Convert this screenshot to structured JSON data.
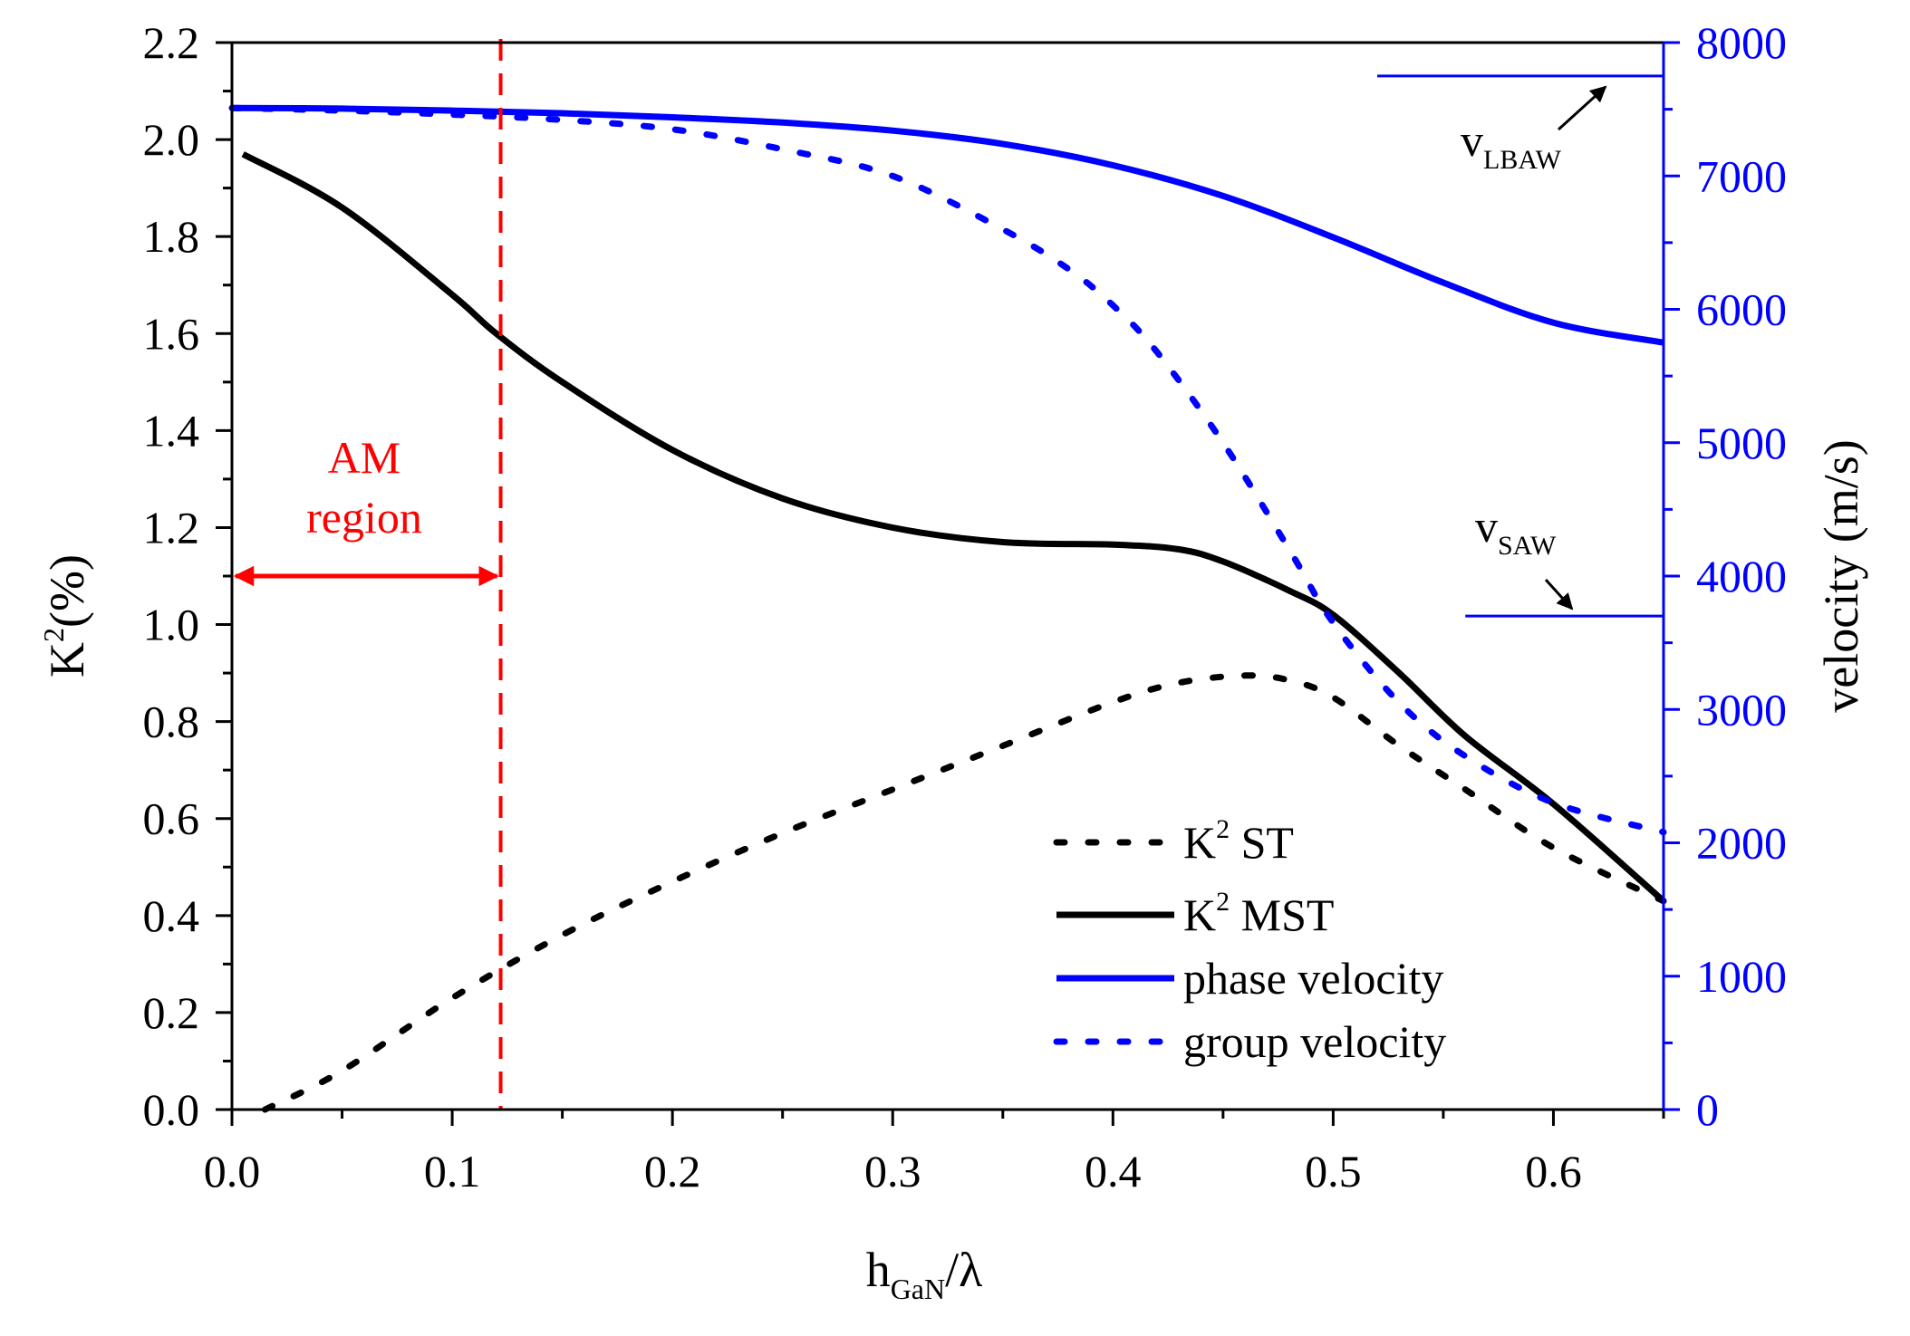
{
  "chart_data": {
    "type": "line",
    "xlabel": {
      "main": "h",
      "sub": "GaN",
      "tail": "/λ"
    },
    "ylabel_left": {
      "main": "K",
      "sup": "2",
      "tail": "(%)"
    },
    "ylabel_right": "velocity (m/s)",
    "xlim": [
      0,
      0.65
    ],
    "ylim_left": [
      0,
      2.2
    ],
    "ylim_right": [
      0,
      8000
    ],
    "x_ticks": [
      "0.0",
      "0.1",
      "0.2",
      "0.3",
      "0.4",
      "0.5",
      "0.6"
    ],
    "y_left_ticks": [
      "0.0",
      "0.2",
      "0.4",
      "0.6",
      "0.8",
      "1.0",
      "1.2",
      "1.4",
      "1.6",
      "1.8",
      "2.0",
      "2.2"
    ],
    "y_right_ticks": [
      "0",
      "1000",
      "2000",
      "3000",
      "4000",
      "5000",
      "6000",
      "7000",
      "8000"
    ],
    "colors": {
      "k2": "#000000",
      "velocity": "#0000ff",
      "annotation": "#ff0000"
    },
    "series": [
      {
        "name": "K² ST",
        "axis": "left",
        "style": "dotted",
        "color": "#000000",
        "x": [
          0.015,
          0.05,
          0.1,
          0.15,
          0.2,
          0.25,
          0.3,
          0.35,
          0.4,
          0.43,
          0.46,
          0.48,
          0.5,
          0.53,
          0.56,
          0.6,
          0.65
        ],
        "y": [
          0.0,
          0.08,
          0.23,
          0.36,
          0.47,
          0.57,
          0.66,
          0.75,
          0.84,
          0.88,
          0.895,
          0.885,
          0.85,
          0.75,
          0.66,
          0.54,
          0.43
        ]
      },
      {
        "name": "K² MST",
        "axis": "left",
        "style": "solid",
        "color": "#000000",
        "x": [
          0.005,
          0.05,
          0.1,
          0.12,
          0.15,
          0.2,
          0.25,
          0.3,
          0.35,
          0.4,
          0.43,
          0.45,
          0.48,
          0.5,
          0.53,
          0.56,
          0.6,
          0.65
        ],
        "y": [
          1.97,
          1.86,
          1.68,
          1.6,
          1.5,
          1.36,
          1.26,
          1.2,
          1.17,
          1.165,
          1.155,
          1.13,
          1.07,
          1.02,
          0.9,
          0.77,
          0.63,
          0.43
        ]
      },
      {
        "name": "phase velocity",
        "axis": "right",
        "style": "solid",
        "color": "#0000ff",
        "x": [
          0.0,
          0.05,
          0.1,
          0.15,
          0.2,
          0.25,
          0.3,
          0.35,
          0.4,
          0.45,
          0.5,
          0.55,
          0.6,
          0.65
        ],
        "y": [
          7510,
          7505,
          7490,
          7470,
          7440,
          7400,
          7340,
          7240,
          7080,
          6850,
          6540,
          6200,
          5900,
          5750
        ]
      },
      {
        "name": "group velocity",
        "axis": "right",
        "style": "dotted",
        "color": "#0000ff",
        "x": [
          0.0,
          0.05,
          0.1,
          0.15,
          0.2,
          0.25,
          0.3,
          0.35,
          0.38,
          0.4,
          0.42,
          0.45,
          0.48,
          0.5,
          0.53,
          0.56,
          0.6,
          0.65
        ],
        "y": [
          7510,
          7490,
          7460,
          7420,
          7350,
          7200,
          7000,
          6600,
          6300,
          6030,
          5680,
          5000,
          4200,
          3650,
          3050,
          2650,
          2300,
          2080
        ]
      }
    ],
    "legend": [
      {
        "text": "K",
        "sup": "2",
        "tail": " ST",
        "series": 0
      },
      {
        "text": "K",
        "sup": "2",
        "tail": " MST",
        "series": 1
      },
      {
        "text": "phase velocity",
        "sup": "",
        "tail": "",
        "series": 2
      },
      {
        "text": "group velocity",
        "sup": "",
        "tail": "",
        "series": 3
      }
    ],
    "legend_position": "bottom-right",
    "am_region": {
      "x_end": 0.122,
      "label_line1": "AM",
      "label_line2": "region",
      "arrow_y": 1.1
    },
    "reference_lines": [
      {
        "main": "v",
        "sub": "LBAW",
        "velocity": 7750,
        "x_start": 0.52
      },
      {
        "main": "v",
        "sub": "SAW",
        "velocity": 3700,
        "x_start": 0.56
      }
    ]
  }
}
